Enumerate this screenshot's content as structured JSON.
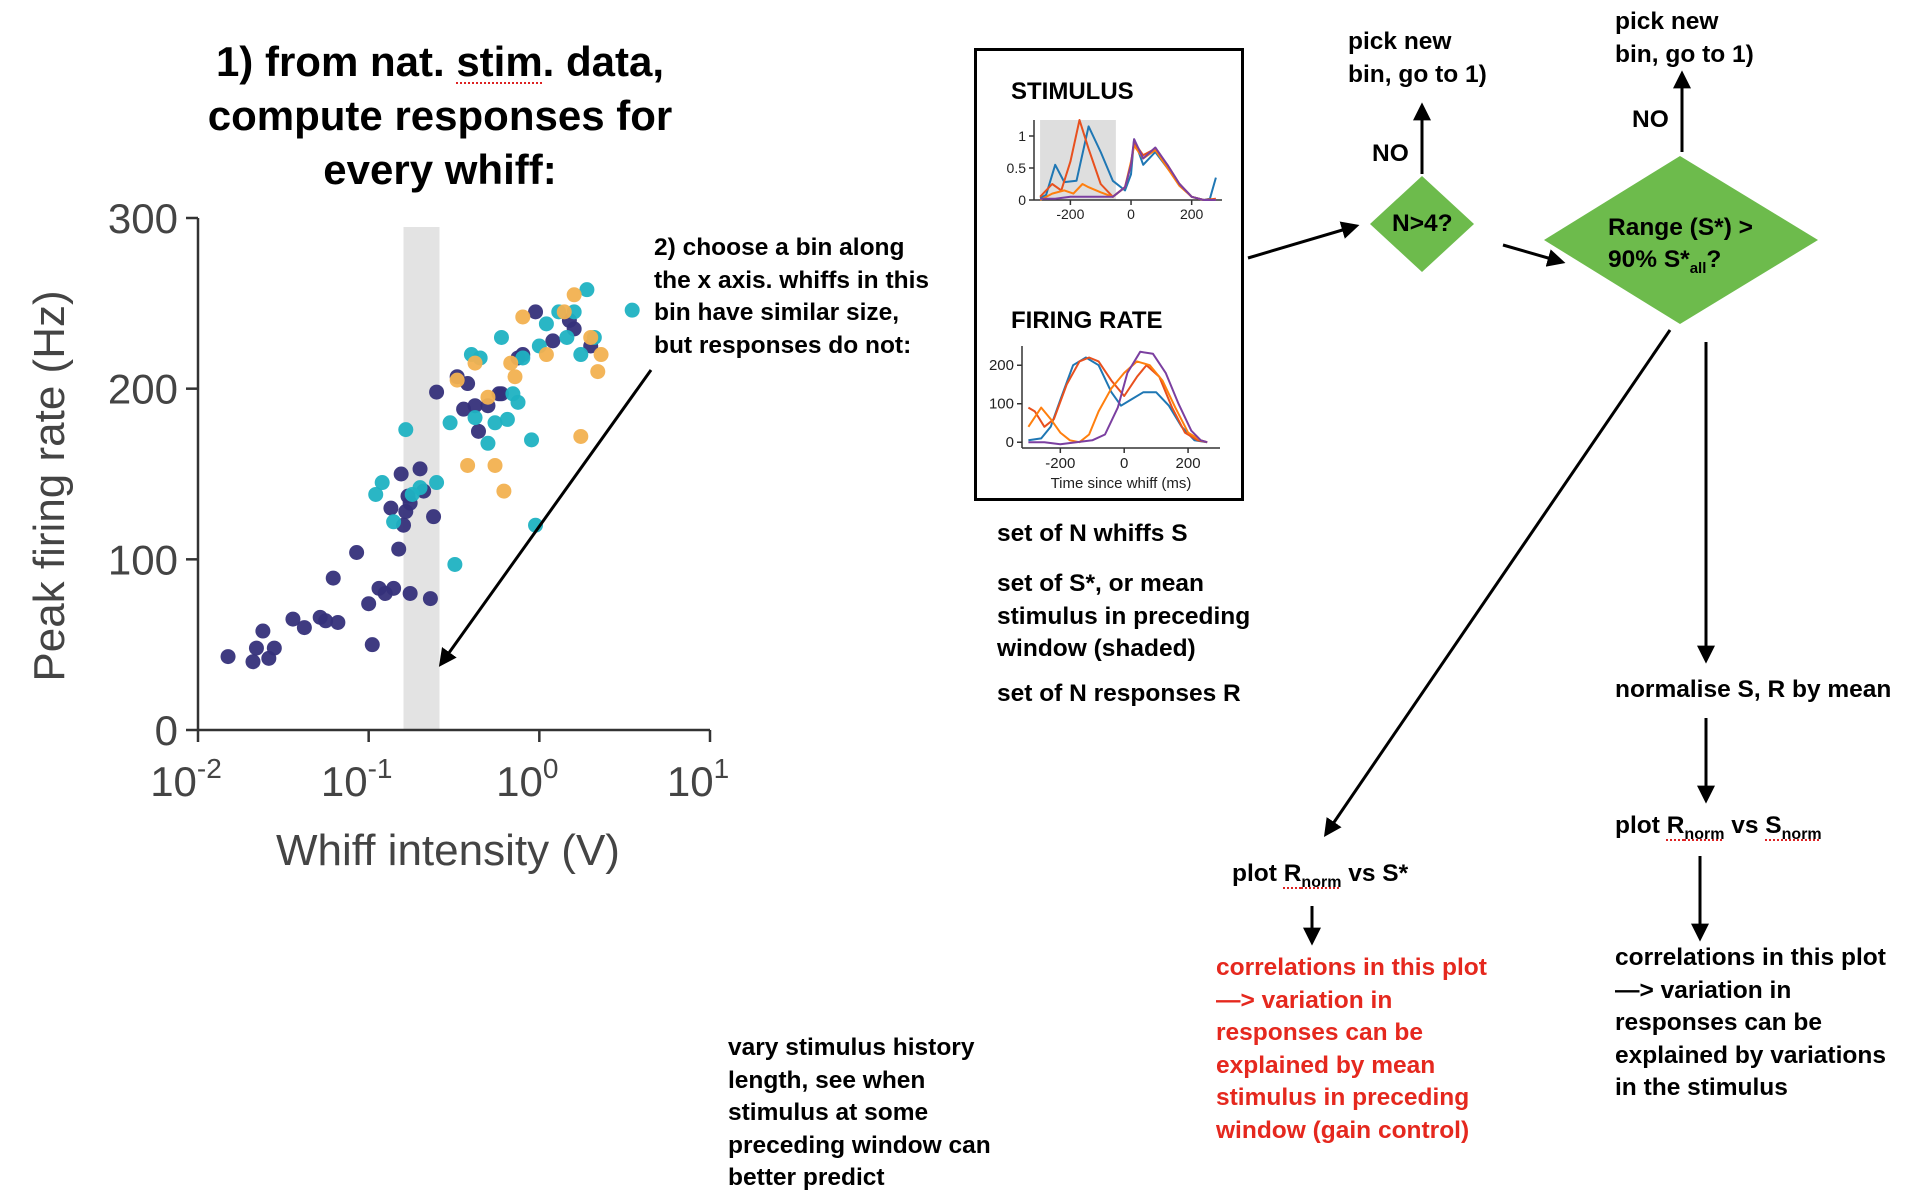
{
  "title": {
    "line1_pre": "1) from nat. ",
    "line1_stim": "stim",
    "line1_post": ". data,",
    "line2": "compute responses for",
    "line3": "every whiff:"
  },
  "colors": {
    "dark": "#35307a",
    "teal": "#1fb2c2",
    "orange": "#f2b150",
    "bin": "#e3e3e3",
    "diamond": "#6dbb4c",
    "red": "#e5281e",
    "purple": "#7b3fa0",
    "blue": "#1f77b4",
    "orange_line": "#ff7f0e",
    "red_line": "#e8501e"
  },
  "chart_data": [
    {
      "type": "scatter",
      "xlabel": "Whiff intensity (V)",
      "ylabel": "Peak firing rate (Hz)",
      "xscale": "log",
      "xlim": [
        0.01,
        10
      ],
      "ylim": [
        0,
        300
      ],
      "xticks": [
        {
          "base": "10",
          "exp": "-2"
        },
        {
          "base": "10",
          "exp": "-1"
        },
        {
          "base": "10",
          "exp": "0"
        },
        {
          "base": "10",
          "exp": "1"
        }
      ],
      "yticks": [
        "0",
        "100",
        "200",
        "300"
      ],
      "shaded_bin": [
        0.16,
        0.26
      ],
      "series": [
        {
          "color": "dark",
          "points": [
            [
              0.015,
              43
            ],
            [
              0.021,
              40
            ],
            [
              0.022,
              48
            ],
            [
              0.024,
              58
            ],
            [
              0.026,
              42
            ],
            [
              0.028,
              48
            ],
            [
              0.036,
              65
            ],
            [
              0.042,
              60
            ],
            [
              0.052,
              66
            ],
            [
              0.056,
              64
            ],
            [
              0.062,
              89
            ],
            [
              0.066,
              63
            ],
            [
              0.085,
              104
            ],
            [
              0.1,
              74
            ],
            [
              0.105,
              50
            ],
            [
              0.115,
              83
            ],
            [
              0.125,
              80
            ],
            [
              0.135,
              130
            ],
            [
              0.14,
              83
            ],
            [
              0.15,
              106
            ],
            [
              0.155,
              150
            ],
            [
              0.16,
              120
            ],
            [
              0.165,
              128
            ],
            [
              0.17,
              137
            ],
            [
              0.175,
              133
            ],
            [
              0.175,
              80
            ],
            [
              0.2,
              153
            ],
            [
              0.21,
              140
            ],
            [
              0.23,
              77
            ],
            [
              0.24,
              125
            ],
            [
              0.25,
              198
            ],
            [
              0.33,
              207
            ],
            [
              0.36,
              188
            ],
            [
              0.38,
              203
            ],
            [
              0.42,
              190
            ],
            [
              0.44,
              175
            ],
            [
              0.5,
              190
            ],
            [
              0.58,
              197
            ],
            [
              0.6,
              197
            ],
            [
              0.75,
              218
            ],
            [
              0.8,
              220
            ],
            [
              0.95,
              245
            ],
            [
              1.2,
              228
            ],
            [
              1.5,
              240
            ],
            [
              1.6,
              235
            ],
            [
              2.0,
              225
            ]
          ]
        },
        {
          "color": "teal",
          "points": [
            [
              0.11,
              138
            ],
            [
              0.12,
              145
            ],
            [
              0.14,
              122
            ],
            [
              0.165,
              176
            ],
            [
              0.18,
              138
            ],
            [
              0.2,
              142
            ],
            [
              0.25,
              145
            ],
            [
              0.3,
              180
            ],
            [
              0.32,
              97
            ],
            [
              0.4,
              220
            ],
            [
              0.42,
              183
            ],
            [
              0.45,
              218
            ],
            [
              0.5,
              168
            ],
            [
              0.55,
              180
            ],
            [
              0.6,
              230
            ],
            [
              0.65,
              182
            ],
            [
              0.7,
              197
            ],
            [
              0.75,
              192
            ],
            [
              0.8,
              218
            ],
            [
              0.9,
              170
            ],
            [
              0.95,
              120
            ],
            [
              1.0,
              225
            ],
            [
              1.1,
              238
            ],
            [
              1.3,
              245
            ],
            [
              1.45,
              230
            ],
            [
              1.6,
              245
            ],
            [
              1.75,
              220
            ],
            [
              1.9,
              258
            ],
            [
              2.1,
              230
            ],
            [
              3.5,
              246
            ]
          ]
        },
        {
          "color": "orange",
          "points": [
            [
              0.33,
              205
            ],
            [
              0.38,
              155
            ],
            [
              0.42,
              215
            ],
            [
              0.5,
              195
            ],
            [
              0.55,
              155
            ],
            [
              0.62,
              140
            ],
            [
              0.68,
              215
            ],
            [
              0.72,
              207
            ],
            [
              0.8,
              242
            ],
            [
              1.1,
              220
            ],
            [
              1.4,
              245
            ],
            [
              1.6,
              255
            ],
            [
              1.75,
              172
            ],
            [
              2.0,
              230
            ],
            [
              2.2,
              210
            ],
            [
              2.3,
              220
            ]
          ]
        }
      ]
    },
    {
      "type": "line",
      "label": "STIMULUS",
      "xlim": [
        -320,
        300
      ],
      "ylim": [
        0,
        1.25
      ],
      "xticks": [
        "-200",
        "0",
        "200"
      ],
      "yticks": [
        "0",
        "0.5",
        "1"
      ],
      "shaded": [
        -300,
        -50
      ],
      "series": [
        {
          "color": "blue",
          "points": [
            [
              -300,
              0.03
            ],
            [
              -280,
              0.08
            ],
            [
              -250,
              0.55
            ],
            [
              -220,
              0.28
            ],
            [
              -180,
              0.3
            ],
            [
              -140,
              1.15
            ],
            [
              -100,
              0.75
            ],
            [
              -60,
              0.3
            ],
            [
              -20,
              0.15
            ],
            [
              0,
              0.4
            ],
            [
              10,
              0.95
            ],
            [
              40,
              0.55
            ],
            [
              80,
              0.75
            ],
            [
              120,
              0.5
            ],
            [
              160,
              0.25
            ],
            [
              200,
              0.05
            ],
            [
              240,
              0.0
            ],
            [
              260,
              0.02
            ],
            [
              280,
              0.35
            ]
          ]
        },
        {
          "color": "red_line",
          "points": [
            [
              -300,
              0.05
            ],
            [
              -260,
              0.25
            ],
            [
              -230,
              0.15
            ],
            [
              -200,
              0.6
            ],
            [
              -170,
              1.25
            ],
            [
              -140,
              0.8
            ],
            [
              -100,
              0.25
            ],
            [
              -60,
              0.05
            ],
            [
              -20,
              0.2
            ],
            [
              0,
              0.55
            ],
            [
              10,
              0.9
            ],
            [
              40,
              0.7
            ],
            [
              80,
              0.8
            ],
            [
              120,
              0.55
            ],
            [
              160,
              0.25
            ],
            [
              200,
              0.05
            ],
            [
              240,
              0.0
            ],
            [
              280,
              0.02
            ]
          ]
        },
        {
          "color": "orange_line",
          "points": [
            [
              -300,
              0.0
            ],
            [
              -260,
              0.1
            ],
            [
              -220,
              0.15
            ],
            [
              -190,
              0.1
            ],
            [
              -160,
              0.25
            ],
            [
              -140,
              0.2
            ],
            [
              -100,
              0.12
            ],
            [
              -60,
              0.05
            ],
            [
              -20,
              0.2
            ],
            [
              0,
              0.6
            ],
            [
              10,
              0.85
            ],
            [
              40,
              0.65
            ],
            [
              80,
              0.78
            ],
            [
              120,
              0.5
            ],
            [
              160,
              0.22
            ],
            [
              200,
              0.05
            ],
            [
              240,
              0.0
            ],
            [
              280,
              0.0
            ]
          ]
        },
        {
          "color": "purple",
          "points": [
            [
              -300,
              0.02
            ],
            [
              -250,
              0.02
            ],
            [
              -200,
              0.05
            ],
            [
              -150,
              0.05
            ],
            [
              -100,
              0.05
            ],
            [
              -60,
              0.05
            ],
            [
              -20,
              0.2
            ],
            [
              0,
              0.55
            ],
            [
              10,
              0.95
            ],
            [
              40,
              0.65
            ],
            [
              80,
              0.82
            ],
            [
              120,
              0.55
            ],
            [
              160,
              0.25
            ],
            [
              200,
              0.05
            ],
            [
              240,
              0.0
            ],
            [
              280,
              0.0
            ]
          ]
        }
      ]
    },
    {
      "type": "line",
      "label": "FIRING RATE",
      "xlabel": "Time since whiff (ms)",
      "xlim": [
        -320,
        300
      ],
      "ylim": [
        -15,
        250
      ],
      "xticks": [
        "-200",
        "0",
        "200"
      ],
      "yticks": [
        "0",
        "100",
        "200"
      ],
      "series": [
        {
          "color": "blue",
          "points": [
            [
              -300,
              5
            ],
            [
              -260,
              10
            ],
            [
              -230,
              40
            ],
            [
              -200,
              110
            ],
            [
              -160,
              200
            ],
            [
              -120,
              220
            ],
            [
              -80,
              200
            ],
            [
              -40,
              130
            ],
            [
              -10,
              95
            ],
            [
              20,
              110
            ],
            [
              60,
              130
            ],
            [
              100,
              130
            ],
            [
              140,
              95
            ],
            [
              180,
              40
            ],
            [
              220,
              5
            ],
            [
              260,
              0
            ]
          ]
        },
        {
          "color": "red_line",
          "points": [
            [
              -300,
              90
            ],
            [
              -280,
              80
            ],
            [
              -250,
              40
            ],
            [
              -220,
              60
            ],
            [
              -180,
              150
            ],
            [
              -140,
              210
            ],
            [
              -110,
              220
            ],
            [
              -80,
              210
            ],
            [
              -40,
              160
            ],
            [
              0,
              120
            ],
            [
              40,
              170
            ],
            [
              70,
              200
            ],
            [
              110,
              170
            ],
            [
              150,
              90
            ],
            [
              190,
              25
            ],
            [
              230,
              5
            ],
            [
              260,
              0
            ]
          ]
        },
        {
          "color": "orange_line",
          "points": [
            [
              -300,
              40
            ],
            [
              -260,
              90
            ],
            [
              -230,
              60
            ],
            [
              -200,
              25
            ],
            [
              -170,
              5
            ],
            [
              -140,
              0
            ],
            [
              -110,
              20
            ],
            [
              -80,
              80
            ],
            [
              -40,
              140
            ],
            [
              0,
              180
            ],
            [
              40,
              210
            ],
            [
              80,
              200
            ],
            [
              120,
              160
            ],
            [
              160,
              90
            ],
            [
              200,
              25
            ],
            [
              240,
              5
            ],
            [
              260,
              0
            ]
          ]
        },
        {
          "color": "purple",
          "points": [
            [
              -300,
              0
            ],
            [
              -250,
              0
            ],
            [
              -200,
              -5
            ],
            [
              -150,
              0
            ],
            [
              -100,
              5
            ],
            [
              -60,
              20
            ],
            [
              -20,
              90
            ],
            [
              10,
              180
            ],
            [
              50,
              235
            ],
            [
              90,
              230
            ],
            [
              130,
              180
            ],
            [
              170,
              100
            ],
            [
              210,
              30
            ],
            [
              240,
              5
            ],
            [
              260,
              0
            ]
          ]
        }
      ]
    }
  ],
  "labels": {
    "bin_note": "2) choose a bin along\nthe x axis. whiffs in this\nbin have similar size,\nbut responses do not:",
    "set_n": "set of N whiffs S",
    "set_s": "set of S*, or mean\nstimulus in preceding\nwindow (shaded)",
    "set_r": "set of N responses R",
    "vary": "vary stimulus history\nlength, see when\nstimulus at some\npreceding window can\nbetter predict",
    "pick1": "pick new\nbin, go to 1)",
    "pick2": "pick new\nbin, go to 1)",
    "no1": "NO",
    "no2": "NO",
    "diamond1": "N>4?",
    "diamond2_a": "Range (S*) >",
    "diamond2_b_pre": "90% S*",
    "diamond2_b_sub": "all",
    "diamond2_b_post": "?",
    "normalise": "normalise S, R by mean",
    "plot_right_pre": "plot ",
    "plot_right_R": "R",
    "plot_right_Rsub": "norm",
    "plot_right_mid": " vs ",
    "plot_right_S": "S",
    "plot_right_Ssub": "norm",
    "plot_left_pre": "plot ",
    "plot_left_R": "R",
    "plot_left_Rsub": "norm",
    "plot_left_post": " vs S*",
    "corr_left": "correlations in this plot\n—> variation in\nresponses can be\nexplained by mean\nstimulus in preceding\nwindow (gain control)",
    "corr_right": "correlations in this plot\n—> variation in\nresponses can be\nexplained by variations\nin the stimulus"
  }
}
